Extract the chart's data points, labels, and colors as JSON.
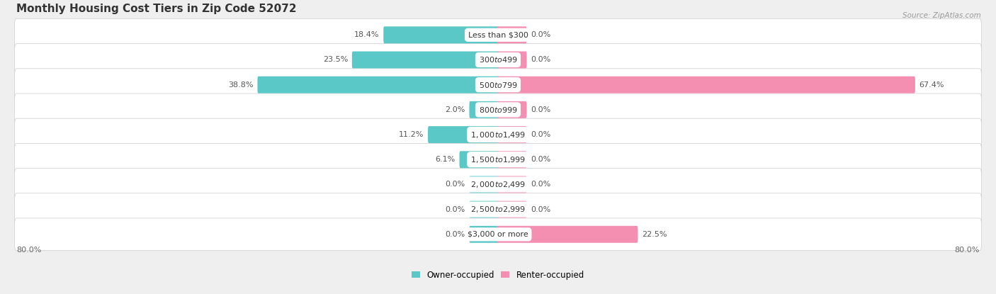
{
  "title": "Monthly Housing Cost Tiers in Zip Code 52072",
  "source": "Source: ZipAtlas.com",
  "categories": [
    "Less than $300",
    "$300 to $499",
    "$500 to $799",
    "$800 to $999",
    "$1,000 to $1,499",
    "$1,500 to $1,999",
    "$2,000 to $2,499",
    "$2,500 to $2,999",
    "$3,000 or more"
  ],
  "owner_values": [
    18.4,
    23.5,
    38.8,
    2.0,
    11.2,
    6.1,
    0.0,
    0.0,
    0.0
  ],
  "renter_values": [
    0.0,
    0.0,
    67.4,
    0.0,
    0.0,
    0.0,
    0.0,
    0.0,
    22.5
  ],
  "owner_color": "#5BC8C8",
  "renter_color": "#F48FB1",
  "bg_color": "#efefef",
  "row_bg_color": "#ffffff",
  "axis_limit": 80.0,
  "min_bar": 4.5,
  "title_fontsize": 11,
  "value_fontsize": 8,
  "category_fontsize": 8,
  "legend_fontsize": 8.5,
  "source_fontsize": 7.5
}
